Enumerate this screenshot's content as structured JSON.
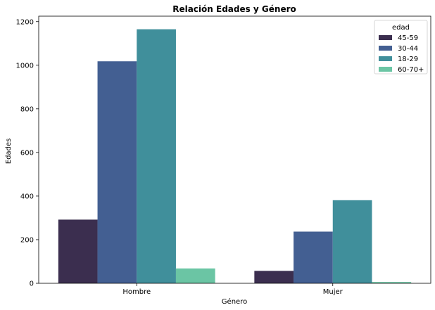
{
  "chart_data": {
    "type": "bar",
    "title": "Relación Edades y Género",
    "xlabel": "Género",
    "ylabel": "Edades",
    "categories": [
      "Hombre",
      "Mujer"
    ],
    "ylim": [
      0,
      1225
    ],
    "yticks": [
      0,
      200,
      400,
      600,
      800,
      1000,
      1200
    ],
    "grid": false,
    "legend": {
      "title": "edad",
      "position": "top-right"
    },
    "series": [
      {
        "name": "45-59",
        "color": "#3b2e4f",
        "values": [
          292,
          57
        ]
      },
      {
        "name": "30-44",
        "color": "#435f92",
        "values": [
          1018,
          237
        ]
      },
      {
        "name": "18-29",
        "color": "#408f9b",
        "values": [
          1165,
          381
        ]
      },
      {
        "name": "60-70+",
        "color": "#6bc5a4",
        "values": [
          68,
          6
        ]
      }
    ]
  }
}
